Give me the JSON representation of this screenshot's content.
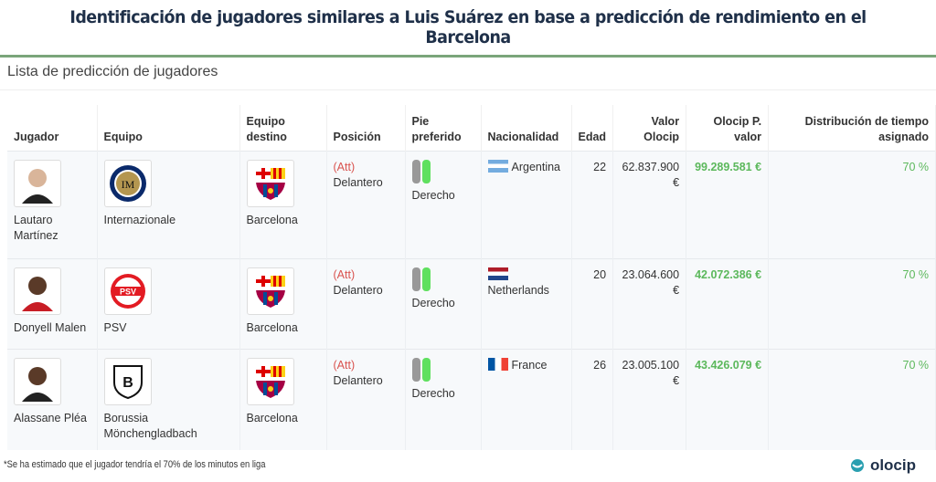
{
  "title": "Identificación de jugadores similares a Luis Suárez en base a predicción de rendimiento en el Barcelona",
  "subtitle": "Lista de predicción de jugadores",
  "headers": [
    "Jugador",
    "Equipo",
    "Equipo destino",
    "Posición",
    "Pie preferido",
    "Nacionalidad",
    "Edad",
    "Valor Olocip",
    "Olocip P. valor",
    "Distribución de tiempo asignado"
  ],
  "rows": [
    {
      "player": "Lautaro Martínez",
      "team": "Internazionale",
      "dest": "Barcelona",
      "pos_tag": "(Att)",
      "pos": "Delantero",
      "foot": "Derecho",
      "nat": "Argentina",
      "age": "22",
      "value": "62.837.900 €",
      "pvalue": "99.289.581 €",
      "dist": "70 %"
    },
    {
      "player": "Donyell Malen",
      "team": "PSV",
      "dest": "Barcelona",
      "pos_tag": "(Att)",
      "pos": "Delantero",
      "foot": "Derecho",
      "nat": "Netherlands",
      "age": "20",
      "value": "23.064.600 €",
      "pvalue": "42.072.386 €",
      "dist": "70 %"
    },
    {
      "player": "Alassane Pléa",
      "team": "Borussia Mönchengladbach",
      "dest": "Barcelona",
      "pos_tag": "(Att)",
      "pos": "Delantero",
      "foot": "Derecho",
      "nat": "France",
      "age": "26",
      "value": "23.005.100 €",
      "pvalue": "43.426.079 €",
      "dist": "70 %"
    }
  ],
  "footnote": "*Se ha estimado que el  jugador tendría el 70% de los minutos en liga",
  "logo": "olocip",
  "colors": {
    "accent": "#5cb85c",
    "position": "#d9534f",
    "title": "#1f3049"
  }
}
